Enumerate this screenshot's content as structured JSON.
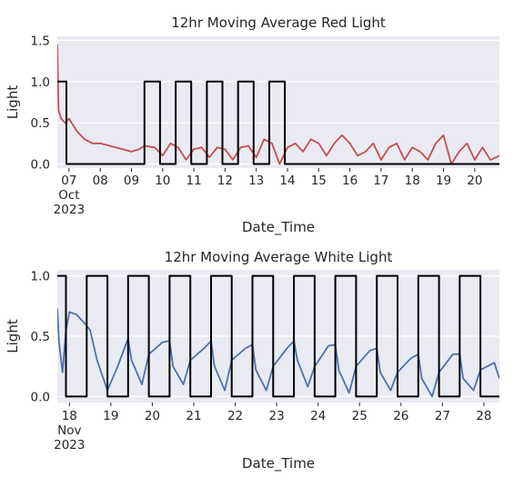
{
  "chart_data": [
    {
      "type": "line",
      "title": "12hr Moving Average Red Light",
      "xlabel": "Date_Time",
      "ylabel": "Light",
      "xlim": [
        "2023-10-06T15:00",
        "2023-10-20T19:00"
      ],
      "ylim": [
        -0.05,
        1.55
      ],
      "yticks": [
        0.0,
        0.5,
        1.0,
        1.5
      ],
      "ytick_labels": [
        "0.0",
        "0.5",
        "1.0",
        "1.5"
      ],
      "xticks": [
        {
          "x": "2023-10-07",
          "label": "07",
          "sub": [
            "Oct",
            "2023"
          ]
        },
        {
          "x": "2023-10-08",
          "label": "08"
        },
        {
          "x": "2023-10-09",
          "label": "09"
        },
        {
          "x": "2023-10-10",
          "label": "10"
        },
        {
          "x": "2023-10-11",
          "label": "11"
        },
        {
          "x": "2023-10-12",
          "label": "12"
        },
        {
          "x": "2023-10-13",
          "label": "13"
        },
        {
          "x": "2023-10-14",
          "label": "14"
        },
        {
          "x": "2023-10-15",
          "label": "15"
        },
        {
          "x": "2023-10-16",
          "label": "16"
        },
        {
          "x": "2023-10-17",
          "label": "17"
        },
        {
          "x": "2023-10-18",
          "label": "18"
        },
        {
          "x": "2023-10-19",
          "label": "19"
        },
        {
          "x": "2023-10-20",
          "label": "20"
        }
      ],
      "grid": true,
      "series": [
        {
          "color": "#c44e52",
          "x": [
            "2023-10-06T15:00",
            "2023-10-06T16:00",
            "2023-10-06T18:00",
            "2023-10-06T21:00",
            "2023-10-07T00:00",
            "2023-10-07T06:00",
            "2023-10-07T12:00",
            "2023-10-07T18:00",
            "2023-10-08T00:00",
            "2023-10-08T12:00",
            "2023-10-09T00:00",
            "2023-10-09T06:00",
            "2023-10-09T10:00",
            "2023-10-09T18:00",
            "2023-10-10T00:00",
            "2023-10-10T06:00",
            "2023-10-10T12:00",
            "2023-10-10T18:00",
            "2023-10-11T00:00",
            "2023-10-11T06:00",
            "2023-10-11T12:00",
            "2023-10-11T18:00",
            "2023-10-12T00:00",
            "2023-10-12T06:00",
            "2023-10-12T12:00",
            "2023-10-12T18:00",
            "2023-10-13T00:00",
            "2023-10-13T06:00",
            "2023-10-13T12:00",
            "2023-10-13T18:00",
            "2023-10-14T00:00",
            "2023-10-14T06:00",
            "2023-10-14T12:00",
            "2023-10-14T18:00",
            "2023-10-15T00:00",
            "2023-10-15T06:00",
            "2023-10-15T12:00",
            "2023-10-15T18:00",
            "2023-10-16T00:00",
            "2023-10-16T06:00",
            "2023-10-16T12:00",
            "2023-10-16T18:00",
            "2023-10-17T00:00",
            "2023-10-17T06:00",
            "2023-10-17T12:00",
            "2023-10-17T18:00",
            "2023-10-18T00:00",
            "2023-10-18T06:00",
            "2023-10-18T12:00",
            "2023-10-18T18:00",
            "2023-10-19T00:00",
            "2023-10-19T06:00",
            "2023-10-19T12:00",
            "2023-10-19T18:00",
            "2023-10-20T00:00",
            "2023-10-20T06:00",
            "2023-10-20T12:00",
            "2023-10-20T19:00"
          ],
          "y": [
            1.45,
            0.65,
            0.55,
            0.5,
            0.55,
            0.4,
            0.3,
            0.25,
            0.25,
            0.2,
            0.15,
            0.18,
            0.22,
            0.2,
            0.1,
            0.25,
            0.2,
            0.05,
            0.18,
            0.2,
            0.08,
            0.2,
            0.18,
            0.05,
            0.2,
            0.22,
            0.08,
            0.3,
            0.25,
            0.0,
            0.2,
            0.25,
            0.15,
            0.3,
            0.25,
            0.1,
            0.25,
            0.35,
            0.25,
            0.1,
            0.15,
            0.25,
            0.05,
            0.2,
            0.25,
            0.05,
            0.2,
            0.15,
            0.05,
            0.25,
            0.35,
            0.0,
            0.15,
            0.25,
            0.05,
            0.2,
            0.05,
            0.1
          ]
        },
        {
          "color": "#000000",
          "x": [
            "2023-10-06T15:00",
            "2023-10-06T22:00",
            "2023-10-06T22:00",
            "2023-10-09T10:00",
            "2023-10-09T10:00",
            "2023-10-09T22:00",
            "2023-10-09T22:00",
            "2023-10-10T10:00",
            "2023-10-10T10:00",
            "2023-10-10T22:00",
            "2023-10-10T22:00",
            "2023-10-11T10:00",
            "2023-10-11T10:00",
            "2023-10-11T22:00",
            "2023-10-11T22:00",
            "2023-10-12T10:00",
            "2023-10-12T10:00",
            "2023-10-12T22:00",
            "2023-10-12T22:00",
            "2023-10-13T10:00",
            "2023-10-13T10:00",
            "2023-10-13T22:00",
            "2023-10-13T22:00",
            "2023-10-20T19:00"
          ],
          "y": [
            1,
            1,
            0,
            0,
            1,
            1,
            0,
            0,
            1,
            1,
            0,
            0,
            1,
            1,
            0,
            0,
            1,
            1,
            0,
            0,
            1,
            1,
            0,
            0
          ]
        }
      ]
    },
    {
      "type": "line",
      "title": "12hr Moving Average White Light",
      "xlabel": "Date_Time",
      "ylabel": "Light",
      "xlim": [
        "2023-11-17T17:00",
        "2023-11-28T09:00"
      ],
      "ylim": [
        -0.05,
        1.05
      ],
      "yticks": [
        0.0,
        0.5,
        1.0
      ],
      "ytick_labels": [
        "0.0",
        "0.5",
        "1.0"
      ],
      "xticks": [
        {
          "x": "2023-11-18",
          "label": "18",
          "sub": [
            "Nov",
            "2023"
          ]
        },
        {
          "x": "2023-11-19",
          "label": "19"
        },
        {
          "x": "2023-11-20",
          "label": "20"
        },
        {
          "x": "2023-11-21",
          "label": "21"
        },
        {
          "x": "2023-11-22",
          "label": "22"
        },
        {
          "x": "2023-11-23",
          "label": "23"
        },
        {
          "x": "2023-11-24",
          "label": "24"
        },
        {
          "x": "2023-11-25",
          "label": "25"
        },
        {
          "x": "2023-11-26",
          "label": "26"
        },
        {
          "x": "2023-11-27",
          "label": "27"
        },
        {
          "x": "2023-11-28",
          "label": "28"
        }
      ],
      "grid": true,
      "series": [
        {
          "color": "#4c72b0",
          "x": [
            "2023-11-17T17:00",
            "2023-11-17T18:00",
            "2023-11-17T20:00",
            "2023-11-17T22:00",
            "2023-11-18T00:00",
            "2023-11-18T04:00",
            "2023-11-18T08:00",
            "2023-11-18T12:00",
            "2023-11-18T16:00",
            "2023-11-18T22:00",
            "2023-11-19T04:00",
            "2023-11-19T10:00",
            "2023-11-19T12:00",
            "2023-11-19T18:00",
            "2023-11-19T22:00",
            "2023-11-20T06:00",
            "2023-11-20T10:00",
            "2023-11-20T12:00",
            "2023-11-20T18:00",
            "2023-11-20T22:00",
            "2023-11-21T06:00",
            "2023-11-21T10:00",
            "2023-11-21T12:00",
            "2023-11-21T18:00",
            "2023-11-21T22:00",
            "2023-11-22T06:00",
            "2023-11-22T10:00",
            "2023-11-22T12:00",
            "2023-11-22T18:00",
            "2023-11-22T22:00",
            "2023-11-23T06:00",
            "2023-11-23T10:00",
            "2023-11-23T12:00",
            "2023-11-23T18:00",
            "2023-11-23T22:00",
            "2023-11-24T06:00",
            "2023-11-24T10:00",
            "2023-11-24T12:00",
            "2023-11-24T18:00",
            "2023-11-24T22:00",
            "2023-11-25T06:00",
            "2023-11-25T10:00",
            "2023-11-25T12:00",
            "2023-11-25T18:00",
            "2023-11-25T22:00",
            "2023-11-26T06:00",
            "2023-11-26T10:00",
            "2023-11-26T12:00",
            "2023-11-26T18:00",
            "2023-11-26T22:00",
            "2023-11-27T06:00",
            "2023-11-27T10:00",
            "2023-11-27T12:00",
            "2023-11-27T18:00",
            "2023-11-27T22:00",
            "2023-11-28T06:00",
            "2023-11-28T09:00"
          ],
          "y": [
            0.73,
            0.45,
            0.2,
            0.55,
            0.7,
            0.68,
            0.62,
            0.55,
            0.3,
            0.05,
            0.25,
            0.48,
            0.3,
            0.1,
            0.35,
            0.45,
            0.46,
            0.25,
            0.1,
            0.3,
            0.4,
            0.46,
            0.25,
            0.05,
            0.3,
            0.4,
            0.43,
            0.22,
            0.05,
            0.25,
            0.4,
            0.46,
            0.3,
            0.08,
            0.25,
            0.42,
            0.43,
            0.22,
            0.03,
            0.25,
            0.38,
            0.4,
            0.2,
            0.05,
            0.2,
            0.32,
            0.35,
            0.15,
            0.0,
            0.2,
            0.35,
            0.35,
            0.15,
            0.05,
            0.22,
            0.28,
            0.15
          ]
        },
        {
          "color": "#000000",
          "x": [
            "2023-11-17T17:00",
            "2023-11-17T22:00",
            "2023-11-17T22:00",
            "2023-11-18T10:00",
            "2023-11-18T10:00",
            "2023-11-18T22:00",
            "2023-11-18T22:00",
            "2023-11-19T10:00",
            "2023-11-19T10:00",
            "2023-11-19T22:00",
            "2023-11-19T22:00",
            "2023-11-20T10:00",
            "2023-11-20T10:00",
            "2023-11-20T22:00",
            "2023-11-20T22:00",
            "2023-11-21T10:00",
            "2023-11-21T10:00",
            "2023-11-21T22:00",
            "2023-11-21T22:00",
            "2023-11-22T10:00",
            "2023-11-22T10:00",
            "2023-11-22T22:00",
            "2023-11-22T22:00",
            "2023-11-23T10:00",
            "2023-11-23T10:00",
            "2023-11-23T22:00",
            "2023-11-23T22:00",
            "2023-11-24T10:00",
            "2023-11-24T10:00",
            "2023-11-24T22:00",
            "2023-11-24T22:00",
            "2023-11-25T10:00",
            "2023-11-25T10:00",
            "2023-11-25T22:00",
            "2023-11-25T22:00",
            "2023-11-26T10:00",
            "2023-11-26T10:00",
            "2023-11-26T22:00",
            "2023-11-26T22:00",
            "2023-11-27T10:00",
            "2023-11-27T10:00",
            "2023-11-27T22:00",
            "2023-11-27T22:00",
            "2023-11-28T09:00"
          ],
          "y": [
            1,
            1,
            0,
            0,
            1,
            1,
            0,
            0,
            1,
            1,
            0,
            0,
            1,
            1,
            0,
            0,
            1,
            1,
            0,
            0,
            1,
            1,
            0,
            0,
            1,
            1,
            0,
            0,
            1,
            1,
            0,
            0,
            1,
            1,
            0,
            0,
            1,
            1,
            0,
            0,
            1,
            1,
            0,
            0
          ]
        }
      ]
    }
  ]
}
